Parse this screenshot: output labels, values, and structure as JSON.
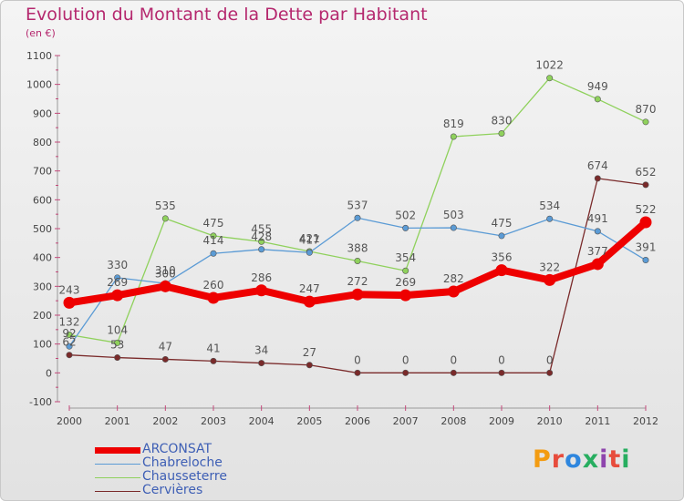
{
  "chart_data": {
    "type": "line",
    "title": "Evolution du Montant de la Dette par Habitant",
    "subtitle": "(en €)",
    "xlabel": "",
    "ylabel": "",
    "x": [
      "2000",
      "2001",
      "2002",
      "2003",
      "2004",
      "2005",
      "2006",
      "2007",
      "2008",
      "2009",
      "2010",
      "2011",
      "2012"
    ],
    "ylim": [
      -100,
      1100
    ],
    "yticks": [
      -100,
      0,
      100,
      200,
      300,
      400,
      500,
      600,
      700,
      800,
      900,
      1000,
      1100
    ],
    "grid": false,
    "legend_position": "bottom-left",
    "series": [
      {
        "name": "ARCONSAT",
        "color": "#ee0000",
        "values": [
          243,
          269,
          300,
          260,
          286,
          247,
          272,
          269,
          282,
          356,
          322,
          377,
          522
        ]
      },
      {
        "name": "Chabreloche",
        "color": "#5b9bd5",
        "values": [
          92,
          330,
          310,
          414,
          428,
          417,
          537,
          502,
          503,
          475,
          534,
          491,
          391
        ]
      },
      {
        "name": "Chausseterre",
        "color": "#8fd15c",
        "values": [
          132,
          104,
          535,
          475,
          455,
          421,
          388,
          354,
          819,
          830,
          1022,
          949,
          870
        ]
      },
      {
        "name": "Cervières",
        "color": "#7a2a2a",
        "values": [
          62,
          53,
          47,
          41,
          34,
          27,
          0,
          0,
          0,
          0,
          0,
          674,
          652
        ]
      }
    ]
  },
  "logo": {
    "text": "Proxiti",
    "letter_colors": [
      "#f39c12",
      "#e74c3c",
      "#2e86de",
      "#27ae60",
      "#8e44ad",
      "#e74c3c",
      "#27ae60"
    ]
  }
}
